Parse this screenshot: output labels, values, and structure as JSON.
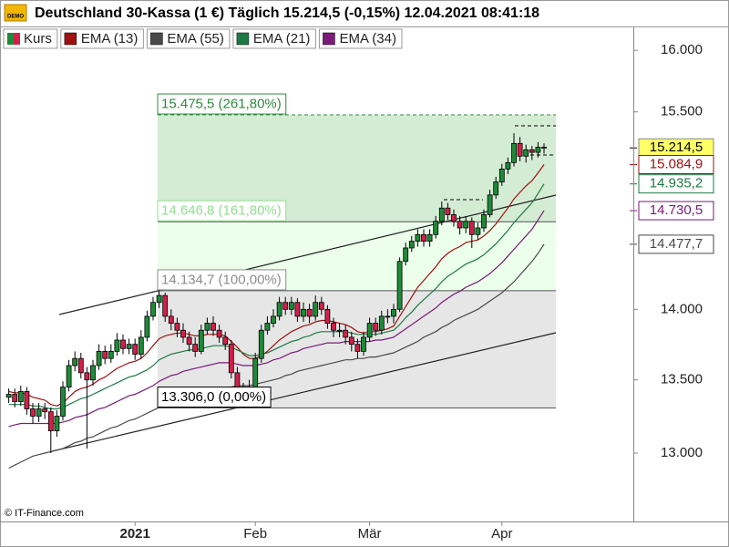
{
  "chart_data": {
    "type": "candlestick",
    "title": "Deutschland 30-Kassa (1 €) Täglich 15.214,5 (-0,15%) 12.04.2021 08:41:18",
    "logo_text": "DEMO",
    "credit": "© IT-Finance.com",
    "log_scale": true,
    "grid": false,
    "ylim": [
      12550,
      16190
    ],
    "yticks": [
      {
        "value": 13000,
        "label": "13.000"
      },
      {
        "value": 13500,
        "label": "13.500"
      },
      {
        "value": 14000,
        "label": "14.000"
      },
      {
        "value": 15500,
        "label": "15.500"
      },
      {
        "value": 16000,
        "label": "16.000"
      }
    ],
    "categories": [
      null,
      null,
      null,
      null,
      null,
      null,
      null,
      null,
      null,
      null,
      null,
      null,
      null,
      null,
      null,
      null,
      null,
      null,
      null,
      null,
      null,
      "2021",
      null,
      null,
      null,
      null,
      null,
      null,
      null,
      null,
      null,
      null,
      null,
      null,
      null,
      null,
      null,
      null,
      null,
      null,
      null,
      "Feb",
      null,
      null,
      null,
      null,
      null,
      null,
      null,
      null,
      null,
      null,
      null,
      null,
      null,
      null,
      null,
      null,
      null,
      null,
      "Mär",
      null,
      null,
      null,
      null,
      null,
      null,
      null,
      null,
      null,
      null,
      null,
      null,
      null,
      null,
      null,
      null,
      null,
      null,
      null,
      null,
      null,
      "Apr",
      null,
      null,
      null,
      null,
      null,
      null,
      null
    ],
    "fib_levels": [
      {
        "value": 15475.5,
        "label": "15.475,5 (261,80%)"
      },
      {
        "value": 14646.8,
        "label": "14.646,8 (161,80%)"
      },
      {
        "value": 14134.7,
        "label": "14.134,7 (100,00%)"
      },
      {
        "value": 13306.0,
        "label": "13.306,0 (0,00%)"
      }
    ],
    "fib_fills": [
      "#d4ecd4",
      "#ebffeb",
      "#e6e6e6"
    ],
    "fib_label_colors": [
      "#2e8b3e",
      "#8fe08f",
      "#8c8c8c",
      "#000000"
    ],
    "series": [
      {
        "name": "Kurs",
        "up_color": "#1f8a38",
        "down_color": "#d2204a",
        "label_bg": "#ffff66",
        "last_label": "15.214,5",
        "open": [
          13380,
          13400,
          13350,
          13420,
          13300,
          13250,
          13300,
          13280,
          13150,
          13250,
          13450,
          13600,
          13650,
          13550,
          13500,
          13600,
          13700,
          13650,
          13700,
          13780,
          13720,
          13750,
          13680,
          13800,
          13950,
          14050,
          14100,
          13950,
          13900,
          13850,
          13800,
          13750,
          13700,
          13850,
          13900,
          13850,
          13800,
          13750,
          13550,
          13450,
          13400,
          13450,
          13650,
          13850,
          13900,
          13950,
          14050,
          14000,
          14050,
          13950,
          14000,
          13950,
          14050,
          14000,
          13900,
          13850,
          13850,
          13800,
          13750,
          13700,
          13800,
          13900,
          13850,
          13950,
          13950,
          14000,
          14350,
          14450,
          14500,
          14550,
          14500,
          14550,
          14650,
          14750,
          14700,
          14650,
          14600,
          14650,
          14550,
          14600,
          14700,
          14850,
          14950,
          15050,
          15100,
          15250,
          15150,
          15200,
          15180,
          15220
        ],
        "high": [
          13440,
          13440,
          13460,
          13450,
          13340,
          13340,
          13340,
          13310,
          13290,
          13490,
          13640,
          13700,
          13690,
          13590,
          13640,
          13750,
          13740,
          13750,
          13830,
          13820,
          13790,
          13790,
          13850,
          13990,
          14090,
          14134.7,
          14120,
          14000,
          13940,
          13900,
          13840,
          13800,
          13890,
          13940,
          13950,
          13890,
          13840,
          13780,
          13590,
          13480,
          13500,
          13690,
          13890,
          13950,
          14000,
          14090,
          14090,
          14090,
          14080,
          14050,
          14040,
          14100,
          14090,
          14030,
          13940,
          13900,
          13890,
          13840,
          13790,
          13840,
          13940,
          13940,
          13990,
          14000,
          14040,
          14380,
          14490,
          14540,
          14590,
          14590,
          14590,
          14690,
          14800,
          14790,
          14740,
          14690,
          14690,
          14680,
          14640,
          14740,
          14890,
          14990,
          15090,
          15140,
          15330,
          15300,
          15240,
          15230,
          15260,
          15250
        ],
        "low": [
          13340,
          13310,
          13320,
          13260,
          13200,
          13210,
          13230,
          13000,
          13110,
          13220,
          13420,
          13560,
          13510,
          13030,
          13460,
          13570,
          13610,
          13620,
          13670,
          13680,
          13680,
          13640,
          13650,
          13770,
          13920,
          14010,
          13910,
          13850,
          13800,
          13760,
          13700,
          13660,
          13680,
          13820,
          13810,
          13760,
          13710,
          13510,
          13400,
          13306,
          13340,
          13420,
          13620,
          13820,
          13870,
          13920,
          13960,
          13960,
          13910,
          13910,
          13900,
          13920,
          13960,
          13860,
          13800,
          13800,
          13750,
          13700,
          13650,
          13670,
          13770,
          13810,
          13820,
          13900,
          13900,
          13980,
          14320,
          14420,
          14460,
          14460,
          14460,
          14520,
          14620,
          14660,
          14610,
          14550,
          14560,
          14450,
          14510,
          14570,
          14680,
          14820,
          14920,
          15010,
          15070,
          15110,
          15100,
          15120,
          15140,
          15170
        ],
        "close": [
          13400,
          13350,
          13420,
          13300,
          13250,
          13300,
          13280,
          13150,
          13250,
          13450,
          13600,
          13650,
          13550,
          13500,
          13600,
          13700,
          13650,
          13700,
          13780,
          13720,
          13750,
          13680,
          13800,
          13950,
          14050,
          14100,
          13950,
          13900,
          13850,
          13800,
          13750,
          13700,
          13850,
          13900,
          13850,
          13800,
          13750,
          13550,
          13450,
          13400,
          13450,
          13650,
          13850,
          13900,
          13950,
          14050,
          14000,
          14050,
          13950,
          14000,
          13950,
          14050,
          14000,
          13900,
          13850,
          13850,
          13800,
          13750,
          13700,
          13800,
          13900,
          13850,
          13950,
          13950,
          14000,
          14350,
          14450,
          14500,
          14550,
          14500,
          14550,
          14650,
          14750,
          14700,
          14650,
          14600,
          14650,
          14550,
          14600,
          14700,
          14850,
          14950,
          15050,
          15100,
          15250,
          15150,
          15200,
          15180,
          15220,
          15214.5
        ]
      },
      {
        "name": "EMA (13)",
        "color": "#a01010",
        "last_label": "15.084,9",
        "values": [
          13420,
          13410,
          13410,
          13400,
          13380,
          13370,
          13360,
          13330,
          13320,
          13340,
          13380,
          13420,
          13440,
          13450,
          13470,
          13500,
          13520,
          13550,
          13580,
          13600,
          13620,
          13630,
          13650,
          13690,
          13740,
          13790,
          13810,
          13820,
          13830,
          13830,
          13820,
          13810,
          13810,
          13820,
          13820,
          13820,
          13810,
          13770,
          13730,
          13680,
          13650,
          13650,
          13670,
          13700,
          13740,
          13780,
          13810,
          13840,
          13860,
          13880,
          13890,
          13910,
          13920,
          13920,
          13910,
          13900,
          13890,
          13870,
          13840,
          13830,
          13840,
          13840,
          13850,
          13860,
          13880,
          13950,
          14020,
          14090,
          14160,
          14210,
          14260,
          14310,
          14370,
          14410,
          14440,
          14460,
          14490,
          14500,
          14510,
          14540,
          14580,
          14630,
          14690,
          14750,
          14820,
          14870,
          14920,
          14960,
          15020,
          15084.9
        ]
      },
      {
        "name": "EMA (55)",
        "color": "#4a4a4a",
        "last_label": "14.477,7",
        "values": [
          12900,
          12920,
          12940,
          12960,
          12980,
          12990,
          13000,
          13010,
          13020,
          13030,
          13050,
          13070,
          13080,
          13100,
          13110,
          13130,
          13150,
          13170,
          13180,
          13200,
          13220,
          13230,
          13250,
          13270,
          13290,
          13310,
          13330,
          13340,
          13360,
          13370,
          13380,
          13390,
          13410,
          13420,
          13430,
          13440,
          13450,
          13450,
          13460,
          13460,
          13460,
          13470,
          13480,
          13490,
          13500,
          13510,
          13530,
          13540,
          13560,
          13570,
          13580,
          13590,
          13600,
          13610,
          13620,
          13630,
          13640,
          13640,
          13650,
          13650,
          13660,
          13660,
          13670,
          13680,
          13690,
          13710,
          13730,
          13750,
          13770,
          13800,
          13820,
          13840,
          13870,
          13890,
          13920,
          13940,
          13960,
          13980,
          14000,
          14030,
          14060,
          14090,
          14120,
          14160,
          14200,
          14250,
          14300,
          14350,
          14410,
          14477.7
        ]
      },
      {
        "name": "EMA (21)",
        "color": "#1e7a45",
        "last_label": "14.935,2",
        "values": [
          13330,
          13330,
          13330,
          13330,
          13320,
          13320,
          13310,
          13300,
          13300,
          13310,
          13330,
          13350,
          13370,
          13380,
          13400,
          13420,
          13440,
          13460,
          13480,
          13500,
          13520,
          13530,
          13550,
          13570,
          13600,
          13640,
          13660,
          13680,
          13690,
          13700,
          13710,
          13710,
          13720,
          13730,
          13740,
          13740,
          13740,
          13730,
          13710,
          13690,
          13670,
          13670,
          13680,
          13690,
          13710,
          13730,
          13750,
          13770,
          13780,
          13800,
          13810,
          13830,
          13840,
          13840,
          13840,
          13840,
          13840,
          13830,
          13820,
          13820,
          13820,
          13820,
          13830,
          13840,
          13850,
          13890,
          13940,
          13980,
          14030,
          14070,
          14110,
          14150,
          14200,
          14240,
          14270,
          14300,
          14330,
          14350,
          14370,
          14400,
          14440,
          14480,
          14530,
          14580,
          14640,
          14690,
          14740,
          14790,
          14860,
          14935.2
        ]
      },
      {
        "name": "EMA (34)",
        "color": "#7a1a7a",
        "last_label": "14.730,5",
        "values": [
          13180,
          13190,
          13200,
          13200,
          13200,
          13200,
          13200,
          13200,
          13200,
          13210,
          13220,
          13240,
          13250,
          13260,
          13280,
          13300,
          13310,
          13330,
          13350,
          13370,
          13390,
          13400,
          13420,
          13440,
          13460,
          13490,
          13510,
          13530,
          13540,
          13560,
          13570,
          13580,
          13590,
          13600,
          13610,
          13620,
          13620,
          13620,
          13610,
          13600,
          13600,
          13600,
          13610,
          13620,
          13640,
          13650,
          13670,
          13690,
          13700,
          13720,
          13730,
          13740,
          13750,
          13760,
          13760,
          13760,
          13770,
          13770,
          13770,
          13770,
          13770,
          13780,
          13780,
          13790,
          13800,
          13830,
          13860,
          13890,
          13920,
          13950,
          13980,
          14010,
          14050,
          14080,
          14110,
          14130,
          14160,
          14180,
          14200,
          14230,
          14260,
          14300,
          14340,
          14390,
          14440,
          14490,
          14540,
          14590,
          14660,
          14730.5
        ]
      }
    ]
  }
}
